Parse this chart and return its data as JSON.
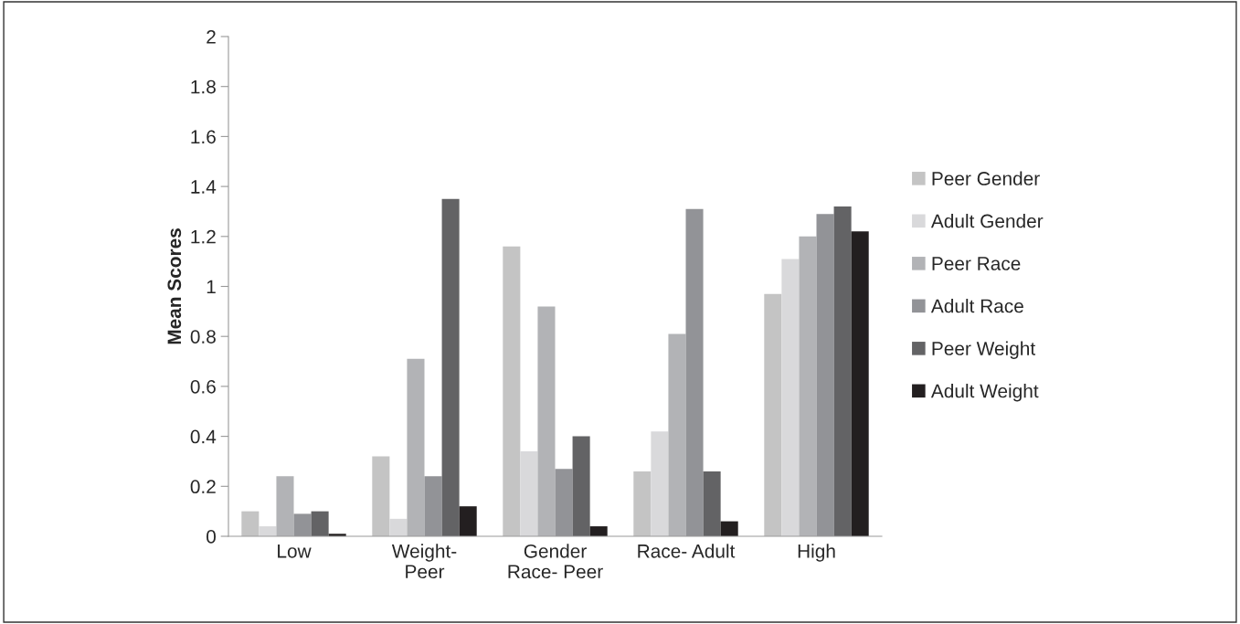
{
  "chart_data": {
    "type": "bar",
    "ylabel": "Mean Scores",
    "categories": [
      "Low",
      "Weight-\nPeer",
      "Gender\nRace- Peer",
      "Race- Adult",
      "High"
    ],
    "series": [
      {
        "name": "Peer Gender",
        "color": "#c4c4c4",
        "values": [
          0.1,
          0.32,
          1.16,
          0.26,
          0.97
        ]
      },
      {
        "name": "Adult Gender",
        "color": "#d9d9db",
        "values": [
          0.04,
          0.07,
          0.34,
          0.42,
          1.11
        ]
      },
      {
        "name": "Peer Race",
        "color": "#b2b3b6",
        "values": [
          0.24,
          0.71,
          0.92,
          0.81,
          1.2
        ]
      },
      {
        "name": "Adult Race",
        "color": "#929397",
        "values": [
          0.09,
          0.24,
          0.27,
          1.31,
          1.29
        ]
      },
      {
        "name": "Peer Weight",
        "color": "#636365",
        "values": [
          0.1,
          1.35,
          0.4,
          0.26,
          1.32
        ]
      },
      {
        "name": "Adult Weight",
        "color": "#231f20",
        "values": [
          0.01,
          0.12,
          0.04,
          0.06,
          1.22
        ]
      }
    ],
    "ylim": [
      0,
      2
    ],
    "yticks": [
      0,
      0.2,
      0.4,
      0.6,
      0.8,
      1,
      1.2,
      1.4,
      1.6,
      1.8,
      2
    ],
    "grid": false,
    "legend": "right"
  }
}
